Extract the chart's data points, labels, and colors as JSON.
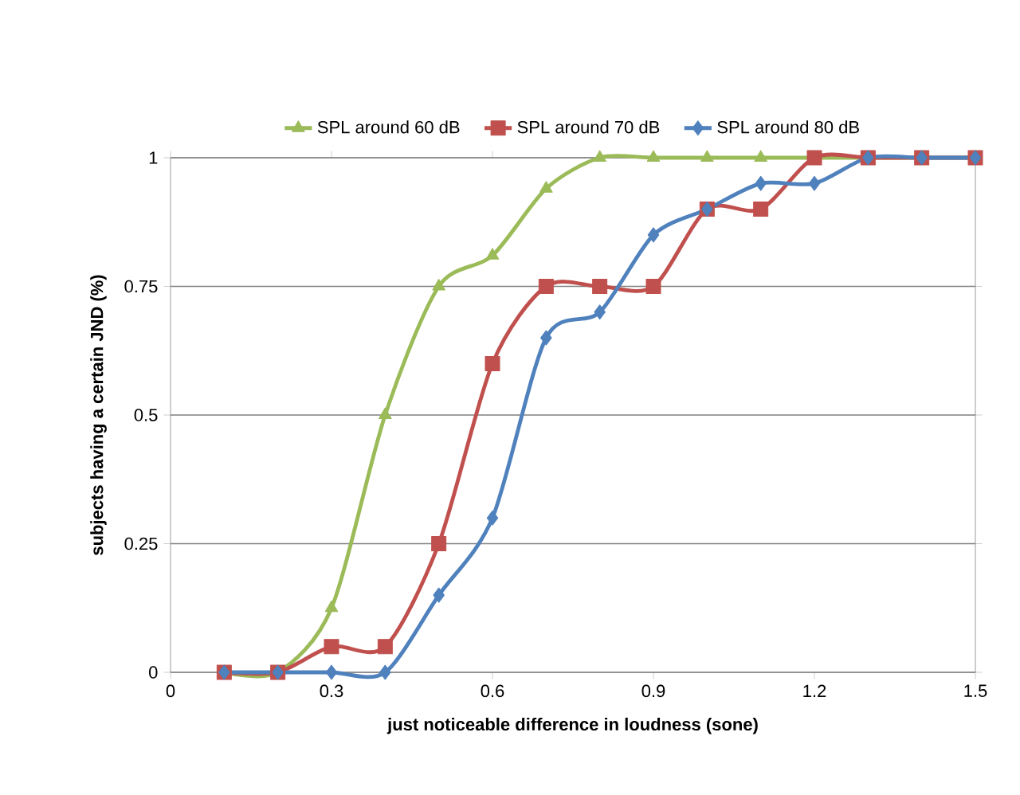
{
  "chart_data": {
    "type": "line",
    "xlabel": "just noticeable difference in loudness (sone)",
    "ylabel": "subjects having a certain JND (%)",
    "x": [
      0.1,
      0.2,
      0.3,
      0.4,
      0.5,
      0.6,
      0.7,
      0.8,
      0.9,
      1.0,
      1.1,
      1.2,
      1.3,
      1.4,
      1.5
    ],
    "series": [
      {
        "name": "SPL around 60 dB",
        "color": "#9bbb59",
        "marker": "triangle",
        "values": [
          0,
          0,
          0.125,
          0.5,
          0.75,
          0.81,
          0.94,
          1,
          1,
          1,
          1,
          1,
          1,
          1,
          1
        ]
      },
      {
        "name": "SPL around 70 dB",
        "color": "#c0504d",
        "marker": "square",
        "values": [
          0,
          0,
          0.05,
          0.05,
          0.25,
          0.6,
          0.75,
          0.75,
          0.75,
          0.9,
          0.9,
          1,
          1,
          1,
          1
        ]
      },
      {
        "name": "SPL around 80 dB",
        "color": "#4f81bd",
        "marker": "diamond",
        "values": [
          0,
          0,
          0,
          0,
          0.15,
          0.3,
          0.65,
          0.7,
          0.85,
          0.9,
          0.95,
          0.95,
          1,
          1,
          1
        ]
      }
    ],
    "xlim": [
      0,
      1.5
    ],
    "xticks": [
      0,
      0.3,
      0.6,
      0.9,
      1.2,
      1.5
    ],
    "ylim": [
      0,
      1
    ],
    "yticks": [
      0,
      0.25,
      0.5,
      0.75,
      1
    ],
    "grid": "y",
    "legend": "top"
  }
}
